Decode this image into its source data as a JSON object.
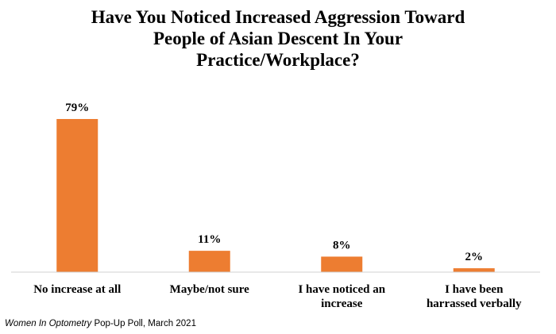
{
  "chart_data": {
    "type": "bar",
    "title_lines": [
      "Have You Noticed Increased Aggression Toward",
      "People of Asian Descent In Your",
      "Practice/Workplace?"
    ],
    "categories": [
      [
        "No increase at all"
      ],
      [
        "Maybe/not sure"
      ],
      [
        "I have noticed an",
        "increase"
      ],
      [
        "I have been",
        "harrassed verbally"
      ]
    ],
    "values": [
      79,
      11,
      8,
      2
    ],
    "value_labels": [
      "79%",
      "11%",
      "8%",
      "2%"
    ],
    "bar_color": "#ED7D31",
    "ylim": [
      0,
      80
    ],
    "grid": false
  },
  "source": {
    "italic": "Women In Optometry",
    "rest": " Pop-Up Poll, March 2021"
  }
}
